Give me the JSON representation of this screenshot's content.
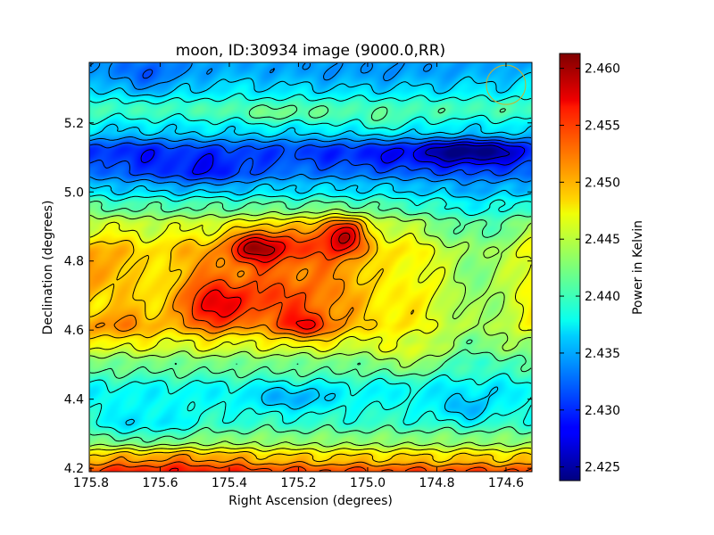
{
  "chart_data": {
    "type": "heatmap",
    "title": "moon, ID:30934 image (9000.0,RR)",
    "xlabel": "Right Ascension (degrees)",
    "ylabel": "Declination (degrees)",
    "colorbar_label": "Power in Kelvin",
    "x_reversed": true,
    "xlim": [
      175.805,
      174.525
    ],
    "ylim": [
      4.19,
      5.375
    ],
    "x_ticks": [
      175.8,
      175.6,
      175.4,
      175.2,
      175.0,
      174.8,
      174.6
    ],
    "x_tick_labels": [
      "175.8",
      "175.6",
      "175.4",
      "175.2",
      "175.0",
      "174.8",
      "174.6"
    ],
    "y_ticks": [
      4.2,
      4.4,
      4.6,
      4.8,
      5.0,
      5.2
    ],
    "y_tick_labels": [
      "4.2",
      "4.4",
      "4.6",
      "4.8",
      "5.0",
      "5.2"
    ],
    "colorbar_range": [
      2.4238,
      2.4613
    ],
    "colorbar_ticks": [
      2.425,
      2.43,
      2.435,
      2.44,
      2.445,
      2.45,
      2.455,
      2.46
    ],
    "colorbar_tick_labels": [
      "2.425",
      "2.430",
      "2.435",
      "2.440",
      "2.445",
      "2.450",
      "2.455",
      "2.460"
    ],
    "colormap": "jet",
    "contours": true,
    "beam_circle": {
      "ra": 174.6,
      "dec": 5.31,
      "color": "#c8b030"
    },
    "features": [
      {
        "ra": 175.32,
        "dec": 4.84,
        "value": 2.4595,
        "kind": "max"
      },
      {
        "ra": 175.07,
        "dec": 4.88,
        "value": 2.461,
        "kind": "max"
      },
      {
        "ra": 175.45,
        "dec": 4.66,
        "value": 2.457,
        "kind": "max"
      },
      {
        "ra": 175.18,
        "dec": 4.61,
        "value": 2.457,
        "kind": "max"
      },
      {
        "ra": 174.7,
        "dec": 5.12,
        "value": 2.4245,
        "kind": "min"
      },
      {
        "ra": 175.47,
        "dec": 5.04,
        "value": 2.431,
        "kind": "min"
      },
      {
        "ra": 175.65,
        "dec": 5.33,
        "value": 2.432,
        "kind": "min"
      },
      {
        "ra": 175.22,
        "dec": 4.4,
        "value": 2.434,
        "kind": "min"
      },
      {
        "ra": 174.72,
        "dec": 4.37,
        "value": 2.433,
        "kind": "min"
      },
      {
        "ra": 174.66,
        "dec": 4.84,
        "value": 2.439,
        "kind": "min"
      },
      {
        "ra": 174.73,
        "dec": 4.64,
        "value": 2.44,
        "kind": "min"
      },
      {
        "ra": 174.87,
        "dec": 4.53,
        "value": 2.449,
        "kind": "max"
      },
      {
        "ra": 175.72,
        "dec": 4.81,
        "value": 2.443,
        "kind": "min"
      },
      {
        "ra": 174.96,
        "dec": 5.2,
        "value": 2.441,
        "kind": "max"
      },
      {
        "ra": 175.25,
        "dec": 5.22,
        "value": 2.441,
        "kind": "max"
      },
      {
        "ra": 175.55,
        "dec": 4.22,
        "value": 2.455,
        "kind": "max"
      },
      {
        "ra": 175.25,
        "dec": 4.22,
        "value": 2.454,
        "kind": "max"
      }
    ]
  }
}
